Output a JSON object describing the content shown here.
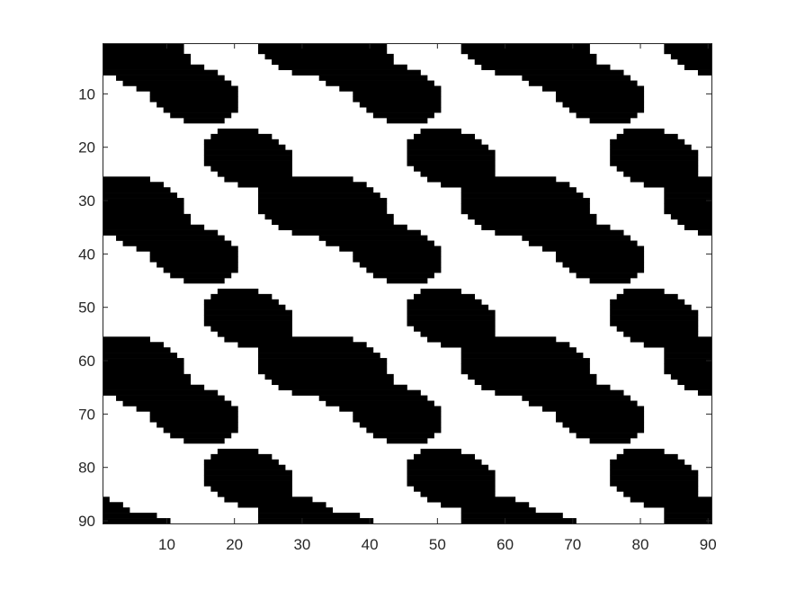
{
  "chart_data": {
    "type": "heatmap",
    "title": "",
    "xlabel": "",
    "ylabel": "",
    "xlim": [
      0.5,
      90.5
    ],
    "ylim": [
      0.5,
      90.5
    ],
    "y_direction": "reverse",
    "grid": false,
    "colormap": "gray",
    "grid_size": [
      90,
      90
    ],
    "xticks": [
      10,
      20,
      30,
      40,
      50,
      60,
      70,
      80,
      90
    ],
    "yticks": [
      10,
      20,
      30,
      40,
      50,
      60,
      70,
      80,
      90
    ],
    "xtick_labels": [
      "10",
      "20",
      "30",
      "40",
      "50",
      "60",
      "70",
      "80",
      "90"
    ],
    "ytick_labels": [
      "10",
      "20",
      "30",
      "40",
      "50",
      "60",
      "70",
      "80",
      "90"
    ],
    "pattern": {
      "description": "binary image of tilted elliptical holes on a periodic lattice",
      "period_x": 30,
      "period_y": 30,
      "sublattice_centers": [
        [
          14,
          10
        ],
        [
          30,
          31
        ],
        [
          22,
          22
        ],
        [
          36,
          1
        ],
        [
          7,
          34
        ]
      ],
      "ellipse_semi_axes": [
        7.2,
        5.2
      ],
      "ellipse_tilt_deg": -30,
      "hole_value": 0,
      "background_value": 1
    },
    "value_range": [
      0,
      1
    ]
  },
  "colors": {
    "hole": "#000000",
    "background": "#ffffff",
    "axis": "#262626"
  }
}
